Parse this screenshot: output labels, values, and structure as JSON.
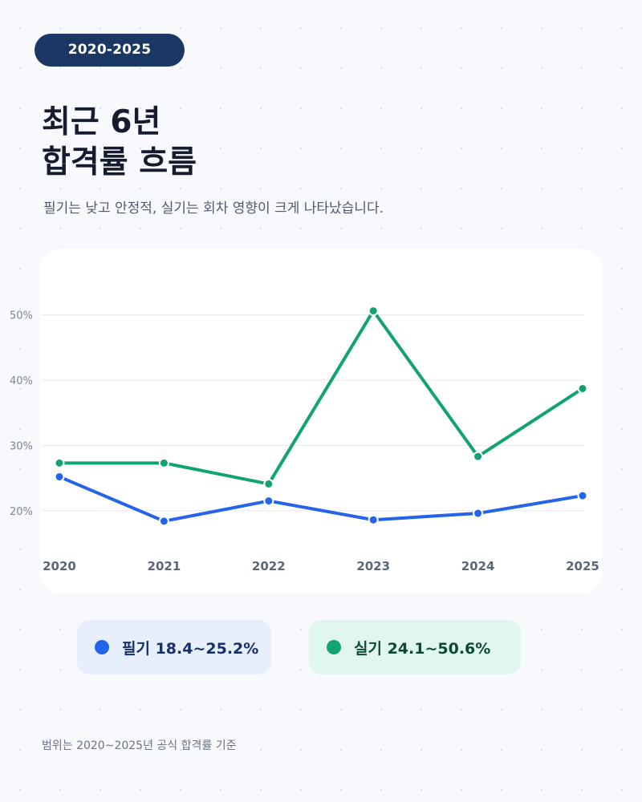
{
  "badge": "2020-2025",
  "title": {
    "line1": "최근 6년",
    "line2": "합격률 흐름"
  },
  "subtitle": "필기는 낮고 안정적, 실기는 회차 영향이 크게 나타났습니다.",
  "legend": [
    {
      "label": "필기 18.4~25.2%",
      "color": "#2563eb"
    },
    {
      "label": "실기 24.1~50.6%",
      "color": "#12a372"
    }
  ],
  "footnote": "범위는 2020~2025년 공식 합격률 기준",
  "chart_data": {
    "type": "line",
    "categories": [
      "2020",
      "2021",
      "2022",
      "2023",
      "2024",
      "2025"
    ],
    "y_ticks": [
      20,
      30,
      40,
      50
    ],
    "y_tick_labels": [
      "20%",
      "30%",
      "40%",
      "50%"
    ],
    "ylim": [
      13.1,
      60
    ],
    "grid": true,
    "series": [
      {
        "name": "필기",
        "color": "#2563eb",
        "values": [
          25.2,
          18.4,
          21.5,
          18.6,
          19.6,
          22.3
        ]
      },
      {
        "name": "실기",
        "color": "#12a372",
        "values": [
          27.3,
          27.3,
          24.1,
          50.6,
          28.3,
          38.7
        ]
      }
    ]
  }
}
